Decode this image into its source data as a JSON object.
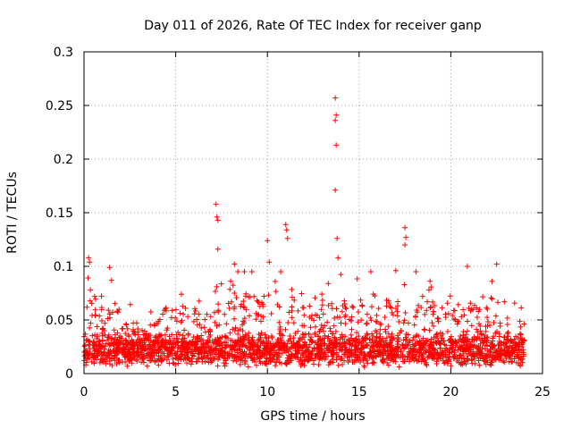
{
  "chart_data": {
    "type": "scatter",
    "title": "Day 011 of 2026, Rate Of TEC Index for receiver ganp",
    "xlabel": "GPS time / hours",
    "ylabel": "ROTI / TECUs",
    "xlim": [
      0,
      25
    ],
    "ylim": [
      0,
      0.3
    ],
    "x_ticks": [
      0,
      5,
      10,
      15,
      20,
      25
    ],
    "y_ticks": [
      0,
      0.05,
      0.1,
      0.15,
      0.2,
      0.25,
      0.3
    ],
    "x_tick_labels": [
      "0",
      "5",
      "10",
      "15",
      "20",
      "25"
    ],
    "y_tick_labels": [
      "0",
      "0.05",
      "0.1",
      "0.15",
      "0.2",
      "0.25",
      "0.3"
    ],
    "grid": true,
    "marker": "+",
    "color": "#ff0000",
    "series": [
      {
        "name": "ROTI",
        "x_range_hours": [
          0,
          24
        ],
        "notes": "Dense scatter of ROTI samples; baseline mostly 0.005-0.05 TECU with spikes",
        "spikes": [
          {
            "x": 0.25,
            "y": 0.108
          },
          {
            "x": 0.3,
            "y": 0.104
          },
          {
            "x": 0.35,
            "y": 0.078
          },
          {
            "x": 1.4,
            "y": 0.099
          },
          {
            "x": 1.5,
            "y": 0.087
          },
          {
            "x": 7.2,
            "y": 0.158
          },
          {
            "x": 7.25,
            "y": 0.146
          },
          {
            "x": 7.3,
            "y": 0.143
          },
          {
            "x": 7.3,
            "y": 0.116
          },
          {
            "x": 8.2,
            "y": 0.102
          },
          {
            "x": 10.0,
            "y": 0.124
          },
          {
            "x": 10.1,
            "y": 0.104
          },
          {
            "x": 11.0,
            "y": 0.139
          },
          {
            "x": 11.05,
            "y": 0.134
          },
          {
            "x": 11.1,
            "y": 0.126
          },
          {
            "x": 13.7,
            "y": 0.257
          },
          {
            "x": 13.75,
            "y": 0.241
          },
          {
            "x": 13.7,
            "y": 0.236
          },
          {
            "x": 13.75,
            "y": 0.213
          },
          {
            "x": 13.7,
            "y": 0.171
          },
          {
            "x": 13.8,
            "y": 0.126
          },
          {
            "x": 13.85,
            "y": 0.108
          },
          {
            "x": 17.5,
            "y": 0.136
          },
          {
            "x": 17.55,
            "y": 0.127
          },
          {
            "x": 17.5,
            "y": 0.12
          },
          {
            "x": 17.0,
            "y": 0.096
          },
          {
            "x": 20.9,
            "y": 0.1
          },
          {
            "x": 22.5,
            "y": 0.102
          }
        ]
      }
    ]
  }
}
